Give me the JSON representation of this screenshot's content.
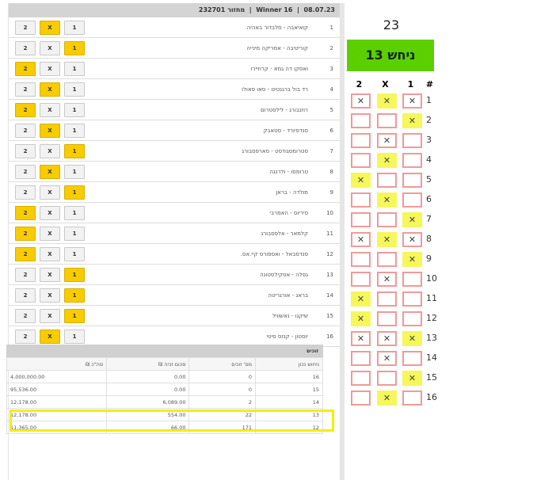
{
  "header": {
    "title": "Winner 16",
    "date": "08.07.23",
    "round_label": "מחזור",
    "round": "232701"
  },
  "options": [
    "1",
    "X",
    "2"
  ],
  "games": [
    {
      "n": "1",
      "teams": "קואיאבה  -  סלבדור באהיה",
      "result": "X"
    },
    {
      "n": "2",
      "teams": "קוריטיבה  -  אמריקה מינייה",
      "result": "1"
    },
    {
      "n": "3",
      "teams": "ואסקו דה גמא  -  קרוזיירו",
      "result": "2"
    },
    {
      "n": "4",
      "teams": "רד בול ברגנטינו  -  סאו פאולו",
      "result": "X"
    },
    {
      "n": "5",
      "teams": "רוזנבורג  -  לילסטרום",
      "result": "2"
    },
    {
      "n": "6",
      "teams": "סנדפיורד  -  סטאבק",
      "result": "X"
    },
    {
      "n": "7",
      "teams": "סטרומסגודסט  -  סארפסבורג",
      "result": "1"
    },
    {
      "n": "8",
      "teams": "טרומסו  -  ולרנגה",
      "result": "X"
    },
    {
      "n": "9",
      "teams": "מולדה  -  בראן",
      "result": "1"
    },
    {
      "n": "10",
      "teams": "סיריוס  -  האמרבי",
      "result": "2"
    },
    {
      "n": "11",
      "teams": "קלמאר  -  אלפסבורג",
      "result": "2"
    },
    {
      "n": "12",
      "teams": "סנדסבאל  -  ואספורס קיי.אס.",
      "result": "2"
    },
    {
      "n": "13",
      "teams": "גפלה  -  אסקילסטונה",
      "result": "1"
    },
    {
      "n": "14",
      "teams": "בראג  -  אורגריטה",
      "result": "1"
    },
    {
      "n": "15",
      "teams": "שיקגו  -  נאשוויל",
      "result": "1"
    },
    {
      "n": "16",
      "teams": "יוסטון  -  קנזס סיטי",
      "result": "X"
    }
  ],
  "winners": {
    "title": "זוכים",
    "columns": [
      "ניחוש נכון",
      "מס' זוכים",
      "סכום זכיה ₪",
      "סה\"כ ₪"
    ],
    "rows": [
      [
        "16",
        "0",
        "0.00",
        "4,000,000.00"
      ],
      [
        "15",
        "0",
        "0.00",
        "95,536.00"
      ],
      [
        "14",
        "2",
        "6,089.00",
        "12,178.00"
      ],
      [
        "13",
        "22",
        "554.00",
        "12,178.00"
      ],
      [
        "12",
        "171",
        "66.00",
        "11,365.00"
      ]
    ],
    "highlight_color": "#f5ee00"
  },
  "side": {
    "score": "23",
    "guess_label": "ניחש 13",
    "accent": "#5ccf00",
    "grid_headers": {
      "c2": "2",
      "cx": "X",
      "c1": "1",
      "num": "#"
    },
    "mark": "✕",
    "rows": [
      {
        "c2": "m",
        "cx": "r",
        "c1": "m"
      },
      {
        "c2": "",
        "cx": "",
        "c1": "r"
      },
      {
        "c2": "",
        "cx": "m",
        "c1": ""
      },
      {
        "c2": "",
        "cx": "r",
        "c1": ""
      },
      {
        "c2": "r",
        "cx": "",
        "c1": ""
      },
      {
        "c2": "",
        "cx": "r",
        "c1": ""
      },
      {
        "c2": "",
        "cx": "",
        "c1": "r"
      },
      {
        "c2": "m",
        "cx": "r",
        "c1": "m"
      },
      {
        "c2": "",
        "cx": "",
        "c1": "r"
      },
      {
        "c2": "",
        "cx": "m",
        "c1": ""
      },
      {
        "c2": "r",
        "cx": "",
        "c1": ""
      },
      {
        "c2": "r",
        "cx": "",
        "c1": ""
      },
      {
        "c2": "m",
        "cx": "m",
        "c1": "r"
      },
      {
        "c2": "",
        "cx": "m",
        "c1": ""
      },
      {
        "c2": "",
        "cx": "",
        "c1": "r"
      },
      {
        "c2": "",
        "cx": "r",
        "c1": ""
      }
    ]
  }
}
